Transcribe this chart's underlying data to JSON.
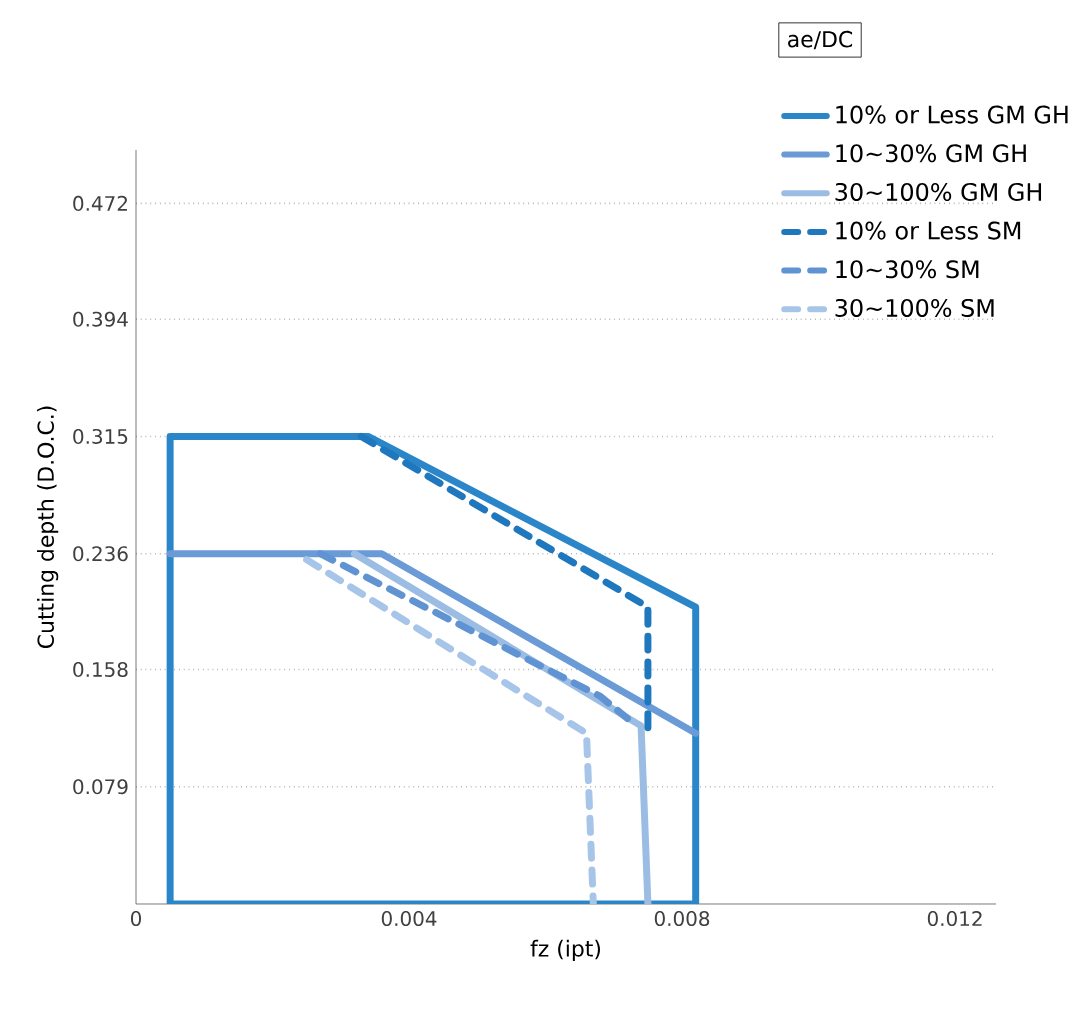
{
  "chart_data": {
    "type": "line",
    "xlabel": "fz (ipt)",
    "ylabel": "Cutting depth (D.O.C.)",
    "legend_title": "ae/DC",
    "legend": "top right",
    "grid": "y",
    "marker": "none",
    "xlim": [
      0,
      0.0126
    ],
    "ylim": [
      0,
      0.508
    ],
    "xticks": [
      0,
      0.004,
      0.008,
      0.012
    ],
    "yticks": [
      0.079,
      0.158,
      0.236,
      0.315,
      0.394,
      0.472
    ],
    "series": [
      {
        "name": "10% or Less GM GH",
        "color": "#2a86c8",
        "line_style": "solid",
        "x": [
          0.004,
          0.0005,
          0.0005,
          0.0034,
          0.0082,
          0.0082,
          0.0035
        ],
        "values": [
          0,
          0,
          0.315,
          0.315,
          0.2,
          0,
          0
        ]
      },
      {
        "name": "10~30% GM GH",
        "color": "#6a9bd6",
        "line_style": "solid",
        "x": [
          0.0005,
          0.0036,
          0.0082
        ],
        "values": [
          0.236,
          0.236,
          0.115
        ]
      },
      {
        "name": "30~100% GM GH",
        "color": "#9bbde3",
        "line_style": "solid",
        "x": [
          0.0032,
          0.0074,
          0.0075
        ],
        "values": [
          0.236,
          0.12,
          0
        ]
      },
      {
        "name": "10% or Less SM",
        "color": "#1f78bd",
        "line_style": "dashed",
        "x": [
          0.0033,
          0.0075,
          0.0075
        ],
        "values": [
          0.315,
          0.2,
          0.115
        ]
      },
      {
        "name": "10~30% SM",
        "color": "#6093d2",
        "line_style": "dashed",
        "x": [
          0.0027,
          0.0068,
          0.0072
        ],
        "values": [
          0.236,
          0.14,
          0.125
        ]
      },
      {
        "name": "30~100% SM",
        "color": "#a6c5e8",
        "line_style": "dashed",
        "x": [
          0.0025,
          0.0066,
          0.0067
        ],
        "values": [
          0.232,
          0.115,
          0
        ]
      }
    ]
  }
}
